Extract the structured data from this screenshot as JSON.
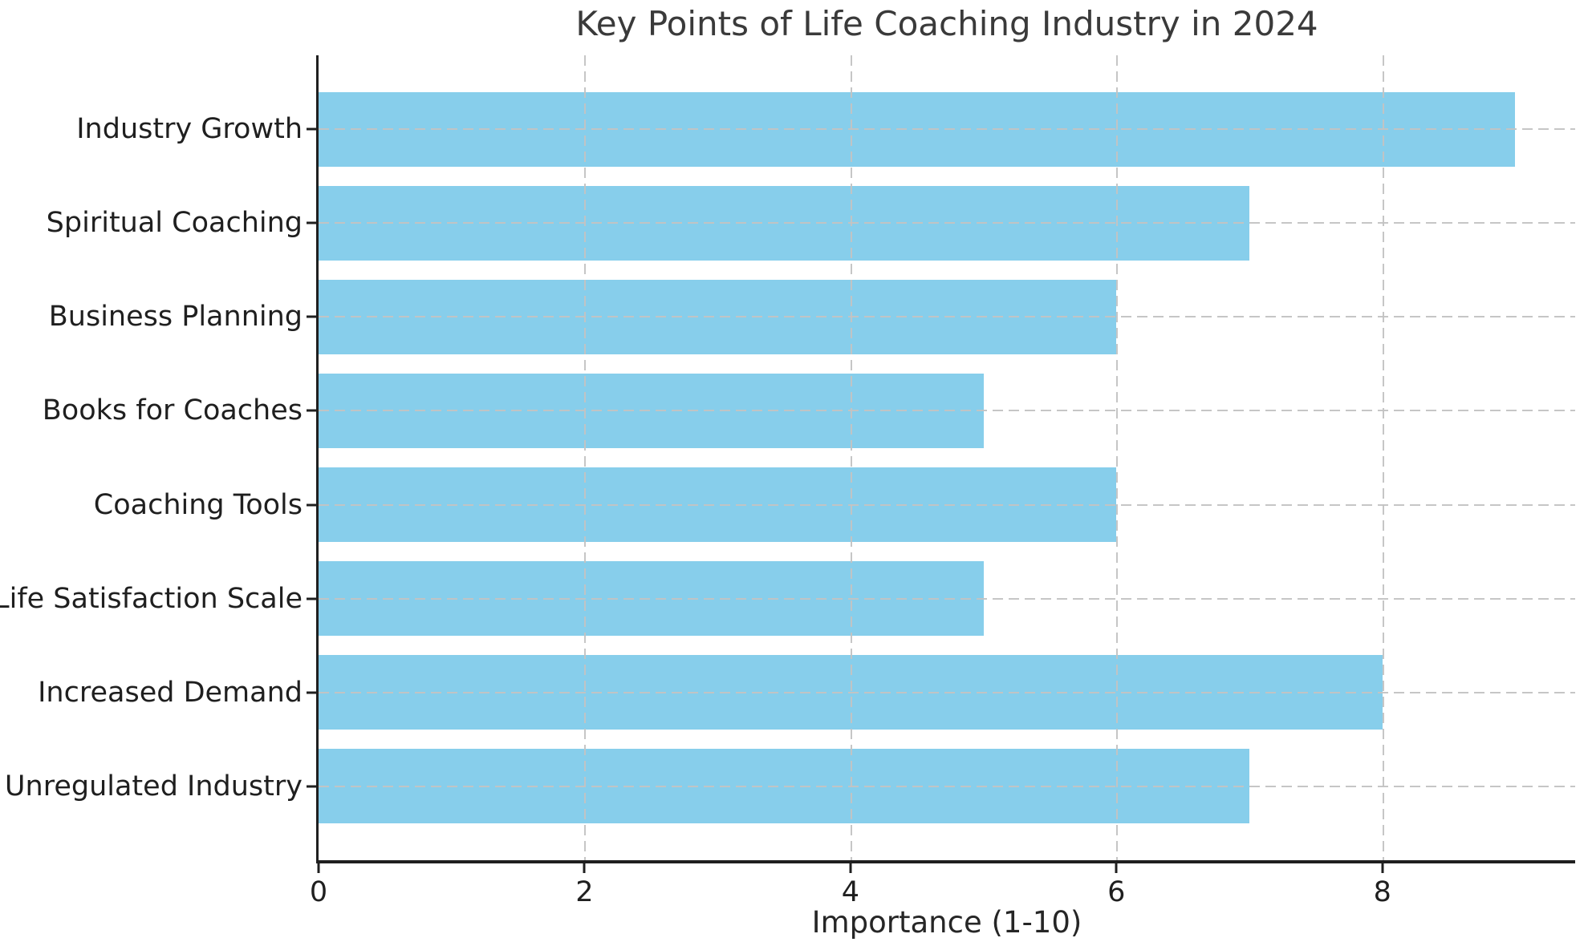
{
  "chart_data": {
    "type": "bar",
    "orientation": "horizontal",
    "title": "Key Points of Life Coaching Industry in 2024",
    "xlabel": "Importance (1-10)",
    "ylabel": "",
    "categories": [
      "Industry Growth",
      "Spiritual Coaching",
      "Business Planning",
      "Books for Coaches",
      "Coaching Tools",
      "Life Satisfaction Scale",
      "Increased Demand",
      "Unregulated Industry"
    ],
    "values": [
      9,
      7,
      6,
      5,
      6,
      5,
      8,
      7
    ],
    "xlim": [
      0,
      9.45
    ],
    "xticks": [
      0,
      2,
      4,
      6,
      8
    ],
    "grid": "dashed, horizontal at each category and vertical at each tick",
    "legend": "none",
    "bar_color": "#87CEEB",
    "grid_color": "#c3c3c3",
    "axis_color": "#1f1f1f",
    "title_color": "#3a3a3a",
    "bar_height_fraction": 0.8,
    "y_margin_units": 0.79
  }
}
